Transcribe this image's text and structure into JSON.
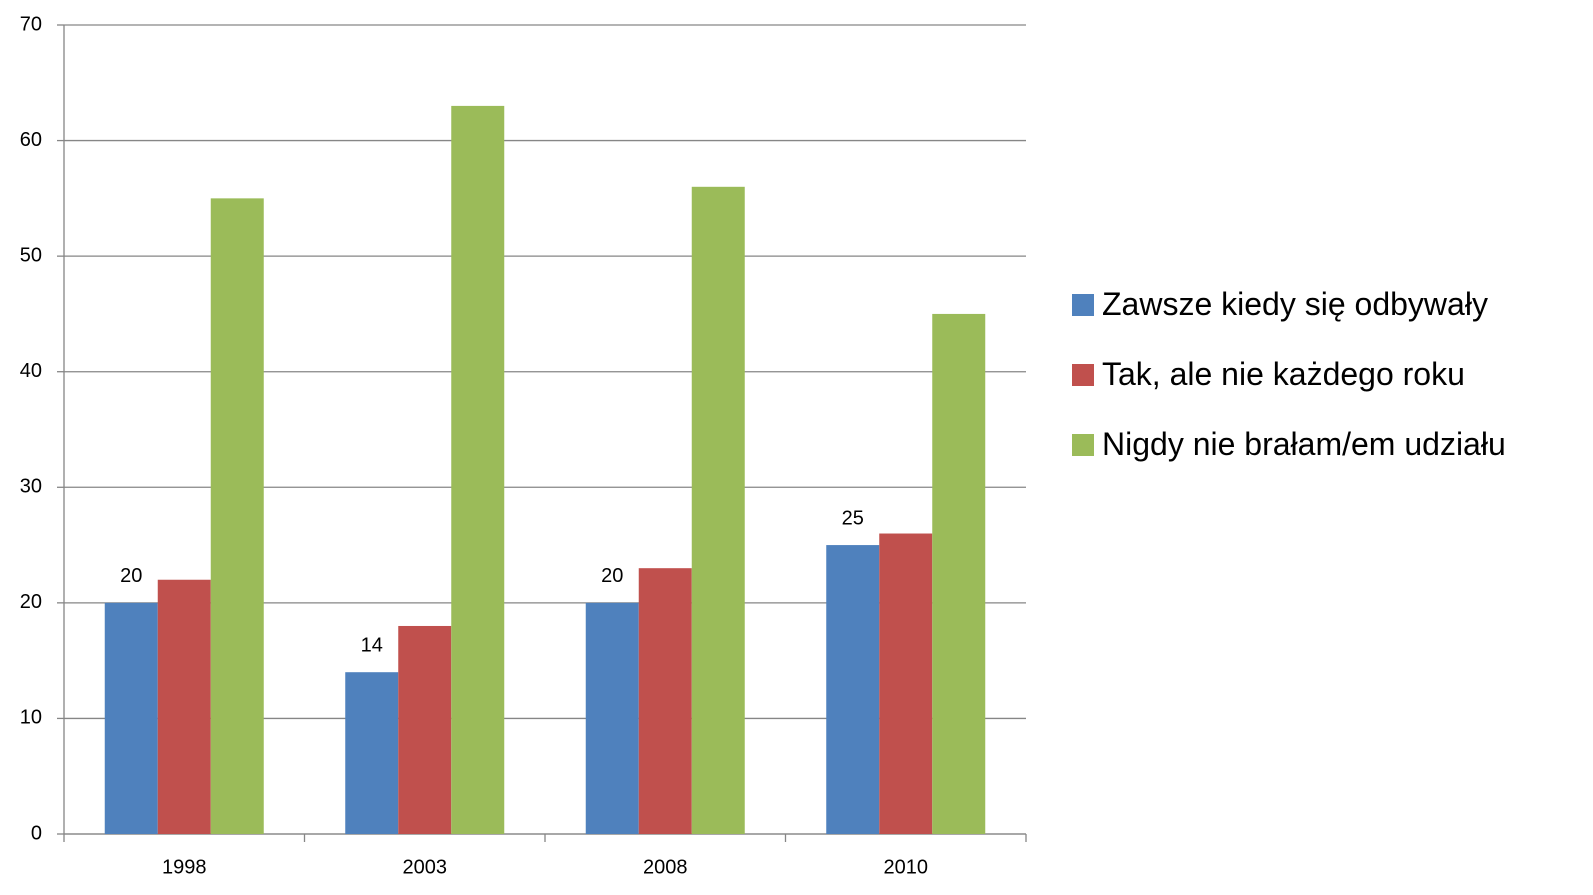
{
  "chart_data": {
    "type": "bar",
    "categories": [
      "1998",
      "2003",
      "2008",
      "2010"
    ],
    "series": [
      {
        "name": "Zawsze kiedy się odbywały",
        "color": "#4f81bd",
        "values": [
          20,
          14,
          20,
          25
        ],
        "data_labels": true
      },
      {
        "name": "Tak, ale nie każdego roku",
        "color": "#c0504d",
        "values": [
          22,
          18,
          23,
          26
        ],
        "data_labels": false
      },
      {
        "name": "Nigdy nie brałam/em udziału",
        "color": "#9bbb59",
        "values": [
          55,
          63,
          56,
          45
        ],
        "data_labels": false
      }
    ],
    "ylim": [
      0,
      70
    ],
    "yticks": [
      0,
      10,
      20,
      30,
      40,
      50,
      60,
      70
    ],
    "grid": true,
    "legend": "right"
  }
}
